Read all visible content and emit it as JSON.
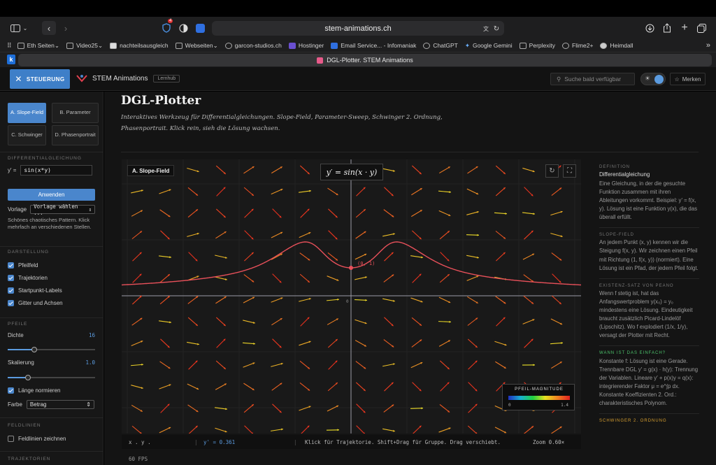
{
  "browser": {
    "url": "stem-animations.ch",
    "shield_badge": "4",
    "tab_title": "DGL-Plotter. STEM Animations",
    "tab_badge": "k",
    "bookmarks": [
      "Eth Seiten",
      "Video25",
      "nachteilsausgleich",
      "Webseiten",
      "garcon-studios.ch",
      "Hostinger",
      "Email Service... - Infomaniak",
      "ChatGPT",
      "Google Gemini",
      "Perplexity",
      "Flime2+",
      "Heimdall"
    ]
  },
  "header": {
    "menu_label": "STEUERUNG",
    "brand": "STEM Animations",
    "lernhub": "Lernhub",
    "search_placeholder": "Suche bald verfügbar",
    "bookmark_label": "Merken"
  },
  "sidebar": {
    "modes": [
      {
        "label": "A. Slope-Field",
        "active": true
      },
      {
        "label": "B. Parameter",
        "active": false
      },
      {
        "label": "C. Schwinger",
        "active": false
      },
      {
        "label": "D. Phasenportrait",
        "active": false
      }
    ],
    "ode_section": "DIFFERENTIALGLEICHUNG",
    "ode_prefix": "y' =",
    "ode_value": "sin(x*y)",
    "apply_label": "Anwenden",
    "template_label": "Vorlage",
    "template_value": "Vorlage wählen ...",
    "template_desc": "Schönes chaotisches Pattern. Klick mehrfach an verschiedenen Stellen.",
    "display_section": "DARSTELLUNG",
    "display_options": [
      {
        "label": "Pfeilfeld",
        "checked": true
      },
      {
        "label": "Trajektorien",
        "checked": true
      },
      {
        "label": "Startpunkt-Labels",
        "checked": true
      },
      {
        "label": "Gitter und Achsen",
        "checked": true
      }
    ],
    "arrows_section": "PFEILE",
    "density_label": "Dichte",
    "density_value": "16",
    "density_fraction": 0.3,
    "scale_label": "Skalierung",
    "scale_value": "1.0",
    "scale_fraction": 0.23,
    "normalize_label": "Länge normieren",
    "normalize_checked": true,
    "color_label": "Farbe",
    "color_value": "Betrag",
    "fieldlines_section": "FELDLINIEN",
    "fieldlines_label": "Feldlinien zeichnen",
    "fieldlines_checked": false,
    "trajectories_section": "TRAJEKTORIEN"
  },
  "main": {
    "title": "DGL-Plotter",
    "subtitle": "Interaktives Werkzeug für Differentialgleichungen. Slope-Field, Parameter-Sweep, Schwinger 2. Ordnung, Phasenportrait. Klick rein, sieh die Lösung wachsen."
  },
  "plot": {
    "mode_tag": "A. Slope-Field",
    "formula": "y′ = sin(x · y)",
    "origin_label": "0",
    "start_point_label": "(0, 1)",
    "legend_title": "PFEIL-MAGNITUDE",
    "legend_min": "0",
    "legend_max": "1.4",
    "colors": {
      "trajectory": "#e8505a",
      "axis": "#9a9aa6"
    },
    "status_coords": "x . y .",
    "status_slope": "y' = 0.361",
    "status_hint": "Klick für Trajektorie. Shift+Drag für Gruppe. Drag verschiebt.",
    "status_zoom": "Zoom 0.60×",
    "fps": "60 FPS"
  },
  "info": {
    "sections": [
      {
        "heading": "DEFINITION",
        "title": "Differentialgleichung",
        "text": "Eine Gleichung, in der die gesuchte Funktion zusammen mit ihren Ableitungen vorkommt. Beispiel: y′ = f(x, y). Lösung ist eine Funktion y(x), die das überall erfüllt."
      },
      {
        "heading": "SLOPE-FIELD",
        "text": "An jedem Punkt (x, y) kennen wir die Steigung f(x, y). Wir zeichnen einen Pfeil mit Richtung (1, f(x, y)) (normiert). Eine Lösung ist ein Pfad, der jedem Pfeil folgt."
      },
      {
        "heading": "EXISTENZ-SATZ VON PEANO",
        "text": "Wenn f stetig ist, hat das Anfangswertproblem y(x₀) = y₀ mindestens eine Lösung. Eindeutigkeit braucht zusätzlich Picard-Lindelöf (Lipschitz). Wo f explodiert (1/x, 1/y), versagt der Plotter mit Recht."
      },
      {
        "heading": "WANN IST DAS EINFACH?",
        "text": "Konstante f: Lösung ist eine Gerade. Trennbare DGL y′ = g(x) · h(y): Trennung der Variablen. Lineare y′ + p(x)y = q(x): integrierender Faktor μ = e^∫p dx. Konstante Koeffizienten 2. Ord.: charakteristisches Polynom."
      },
      {
        "heading": "SCHWINGER 2. ORDNUNG"
      }
    ]
  }
}
